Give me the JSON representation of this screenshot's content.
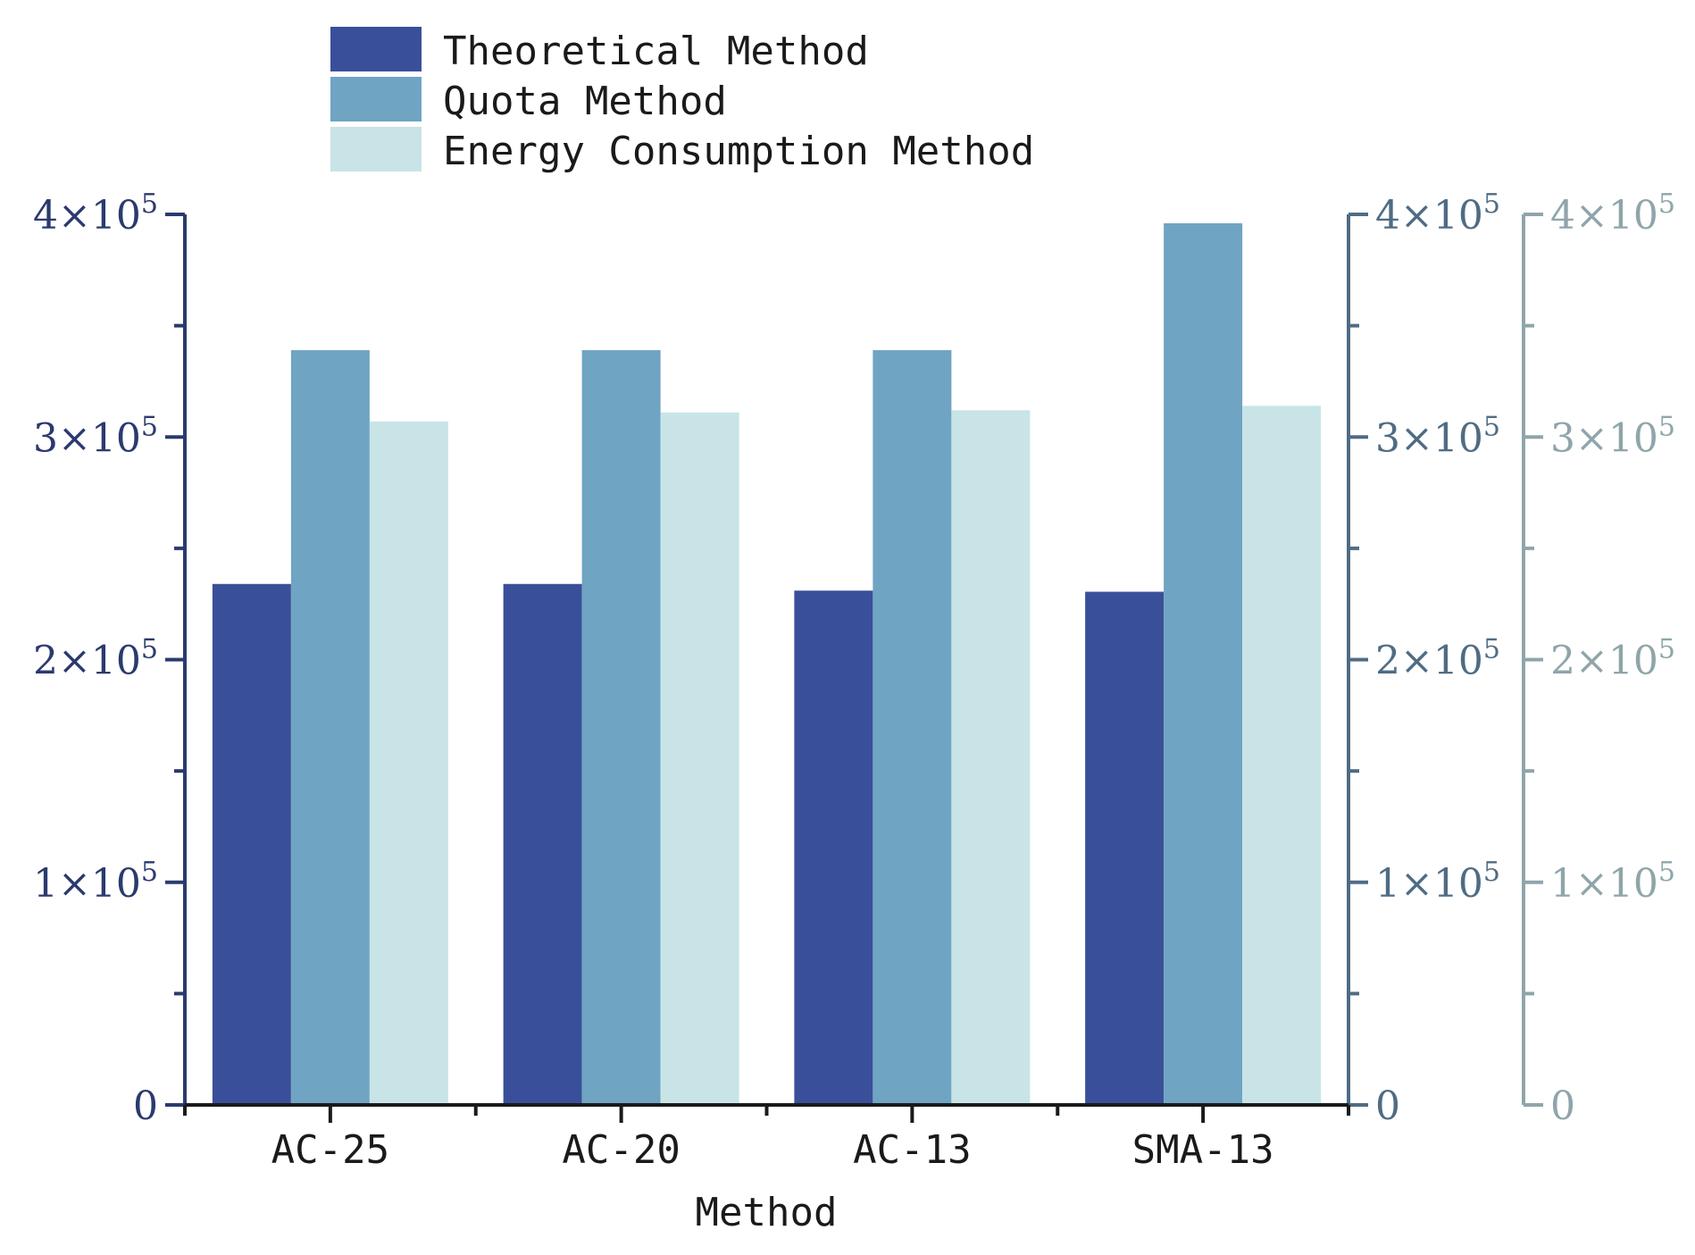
{
  "chart_data": {
    "type": "bar",
    "xlabel": "Method",
    "categories": [
      "AC-25",
      "AC-20",
      "AC-13",
      "SMA-13"
    ],
    "series": [
      {
        "name": "Theoretical Method",
        "color": "#3a4f99",
        "values": [
          234000,
          234000,
          231000,
          230500
        ]
      },
      {
        "name": "Quota Method",
        "color": "#6fa4c3",
        "values": [
          339000,
          339000,
          339000,
          396000
        ]
      },
      {
        "name": "Energy Consumption Method",
        "color": "#c8e4e7",
        "values": [
          307000,
          311000,
          312000,
          314000
        ]
      }
    ],
    "ylim": [
      0,
      400000
    ],
    "yticks": [
      {
        "value": 0,
        "label": "0"
      },
      {
        "value": 100000,
        "label": "1×10",
        "exp": "5"
      },
      {
        "value": 200000,
        "label": "2×10",
        "exp": "5"
      },
      {
        "value": 300000,
        "label": "3×10",
        "exp": "5"
      },
      {
        "value": 400000,
        "label": "4×10",
        "exp": "5"
      }
    ],
    "axis_colors": {
      "left": "#2b3a6e",
      "right1": "#4f6c84",
      "right2": "#8fa5aa"
    },
    "legend_position": "top",
    "grid": false
  }
}
